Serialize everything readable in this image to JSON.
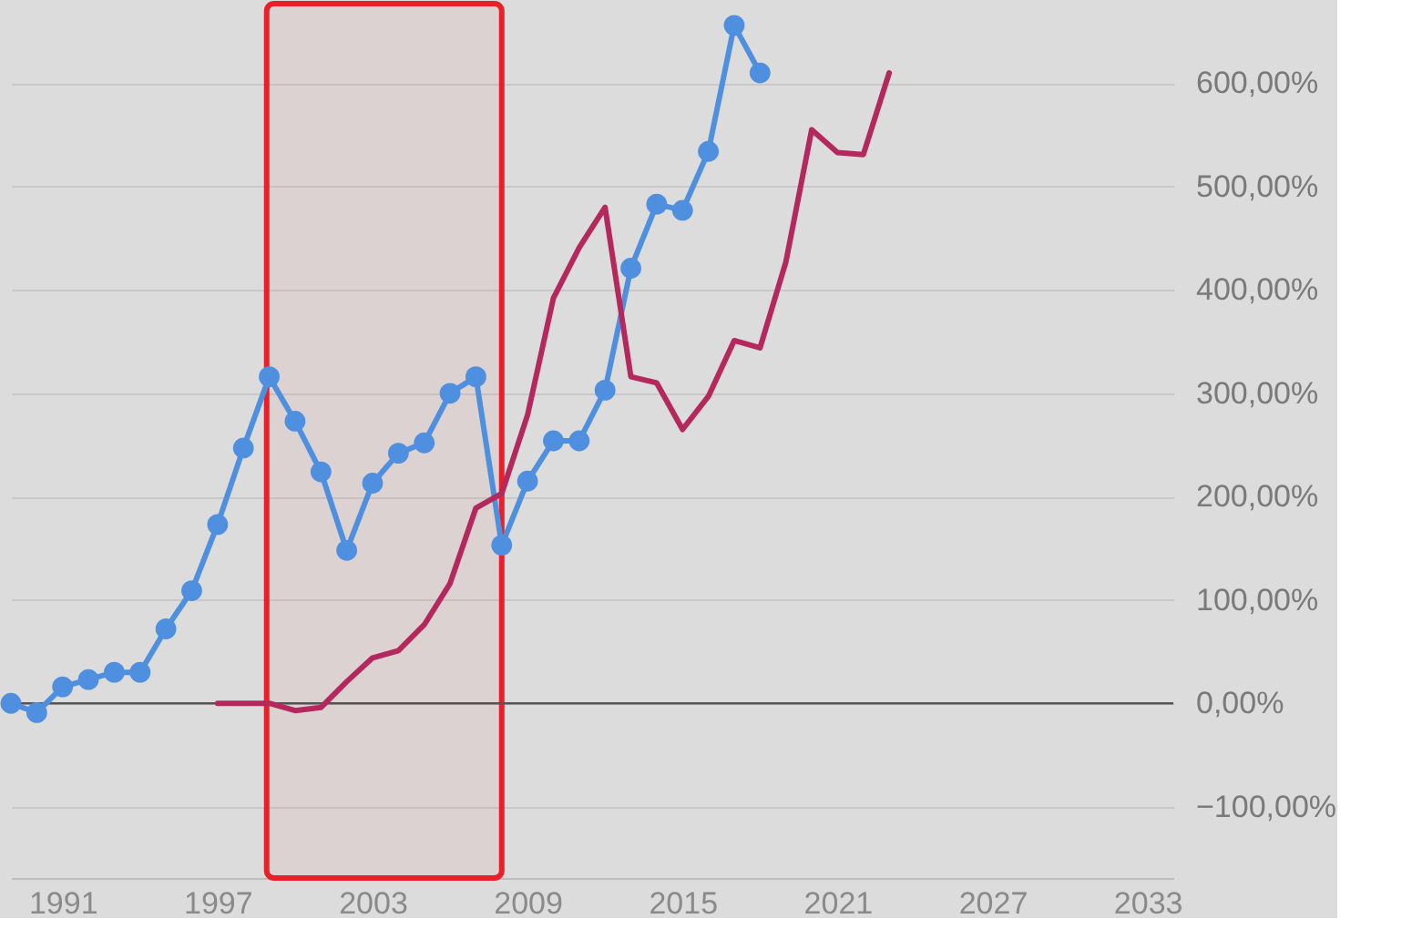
{
  "chart_data": {
    "type": "line",
    "series": [
      {
        "color": "#4f8fe0",
        "marker": "circle",
        "x": [
          1989,
          1990,
          1991,
          1992,
          1993,
          1994,
          1995,
          1996,
          1997,
          1998,
          1999,
          2000,
          2001,
          2002,
          2003,
          2004,
          2005,
          2006,
          2007,
          2008,
          2009,
          2010,
          2011,
          2012,
          2013,
          2014,
          2015,
          2016,
          2017,
          2018
        ],
        "values": [
          0,
          -9,
          16,
          23,
          30,
          30,
          72,
          109,
          173,
          247,
          316,
          273,
          224,
          148,
          213,
          242,
          252,
          300,
          316,
          153,
          215,
          254,
          254,
          303,
          421,
          483,
          477,
          534,
          656,
          610
        ]
      },
      {
        "color": "#b5285e",
        "marker": "none",
        "x": [
          1997,
          1998,
          1999,
          2000,
          2001,
          2002,
          2003,
          2004,
          2005,
          2006,
          2007,
          2008,
          2009,
          2010,
          2011,
          2012,
          2013,
          2014,
          2015,
          2016,
          2017,
          2018,
          2019,
          2020,
          2021,
          2022,
          2023
        ],
        "values": [
          0,
          0,
          0,
          -7,
          -4,
          21,
          44,
          51,
          76,
          116,
          189,
          203,
          279,
          392,
          441,
          480,
          316,
          310,
          265,
          297,
          351,
          344,
          427,
          555,
          533,
          531,
          610
        ]
      }
    ],
    "xlim": [
      1989,
      2034
    ],
    "xticks": [
      1991,
      1997,
      2003,
      2009,
      2015,
      2021,
      2027,
      2033
    ],
    "ylim": [
      -169,
      677
    ],
    "yticks": [
      {
        "value": -100,
        "label": "−100,00%"
      },
      {
        "value": 0,
        "label": "0,00%"
      },
      {
        "value": 100,
        "label": "100,00%"
      },
      {
        "value": 200,
        "label": "200,00%"
      },
      {
        "value": 300,
        "label": "300,00%"
      },
      {
        "value": 400,
        "label": "400,00%"
      },
      {
        "value": 500,
        "label": "500,00%"
      },
      {
        "value": 600,
        "label": "600,00%"
      }
    ],
    "grid": "y",
    "legend": false,
    "ref_lines": [
      {
        "axis": "y",
        "value": 0,
        "color": "#555555"
      }
    ],
    "bands": [
      {
        "axis": "x",
        "from": 1998.9,
        "to": 2008,
        "color": "#e8202a"
      }
    ]
  }
}
